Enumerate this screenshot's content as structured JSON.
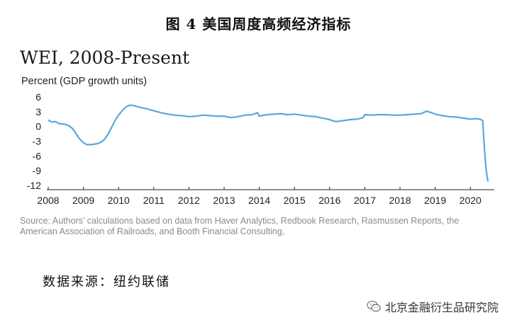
{
  "figure_title": "图 4 美国周度高频经济指标",
  "chart_data": {
    "type": "line",
    "title": "WEI, 2008-Present",
    "ylabel": "Percent (GDP growth units)",
    "xlabel": "",
    "ylim": [
      -12,
      6
    ],
    "xlim": [
      2008,
      2020.6
    ],
    "yticks": [
      6,
      3,
      0,
      -3,
      -6,
      -9,
      -12
    ],
    "xticks": [
      2008,
      2009,
      2010,
      2011,
      2012,
      2013,
      2014,
      2015,
      2016,
      2017,
      2018,
      2019,
      2020
    ],
    "grid": false,
    "line_color": "#5aa7db",
    "series": [
      {
        "x": [
          2008.0,
          2008.1,
          2008.2,
          2008.3,
          2008.4,
          2008.5,
          2008.6,
          2008.7,
          2008.8,
          2008.9,
          2009.0,
          2009.1,
          2009.2,
          2009.3,
          2009.4,
          2009.5,
          2009.6,
          2009.7,
          2009.8,
          2009.9,
          2010.0,
          2010.1,
          2010.2,
          2010.3,
          2010.4,
          2010.5,
          2010.6,
          2010.8,
          2011.0,
          2011.2,
          2011.4,
          2011.6,
          2011.8,
          2012.0,
          2012.2,
          2012.4,
          2012.6,
          2012.8,
          2013.0,
          2013.2,
          2013.4,
          2013.6,
          2013.8,
          2013.95,
          2014.0,
          2014.2,
          2014.4,
          2014.6,
          2014.8,
          2015.0,
          2015.2,
          2015.4,
          2015.6,
          2015.8,
          2016.0,
          2016.1,
          2016.2,
          2016.4,
          2016.6,
          2016.8,
          2016.95,
          2017.0,
          2017.2,
          2017.4,
          2017.6,
          2017.8,
          2018.0,
          2018.2,
          2018.4,
          2018.6,
          2018.75,
          2018.9,
          2019.0,
          2019.2,
          2019.4,
          2019.6,
          2019.8,
          2020.0,
          2020.15,
          2020.25,
          2020.3,
          2020.35,
          2020.4,
          2020.45,
          2020.5
        ],
        "y": [
          1.3,
          0.9,
          1.0,
          0.6,
          0.5,
          0.4,
          0.1,
          -0.5,
          -1.6,
          -2.6,
          -3.3,
          -3.7,
          -3.7,
          -3.6,
          -3.5,
          -3.2,
          -2.6,
          -1.6,
          -0.2,
          1.2,
          2.3,
          3.2,
          3.9,
          4.3,
          4.3,
          4.1,
          3.9,
          3.6,
          3.2,
          2.8,
          2.5,
          2.3,
          2.2,
          2.0,
          2.1,
          2.3,
          2.2,
          2.1,
          2.1,
          1.8,
          2.0,
          2.3,
          2.4,
          2.8,
          2.1,
          2.4,
          2.5,
          2.6,
          2.4,
          2.5,
          2.3,
          2.1,
          2.0,
          1.7,
          1.4,
          1.1,
          1.0,
          1.2,
          1.4,
          1.5,
          1.8,
          2.4,
          2.3,
          2.4,
          2.4,
          2.3,
          2.3,
          2.4,
          2.5,
          2.6,
          3.1,
          2.8,
          2.5,
          2.2,
          2.0,
          1.9,
          1.7,
          1.5,
          1.6,
          1.5,
          1.4,
          1.2,
          -4.5,
          -9.0,
          -11.2
        ]
      }
    ]
  },
  "source_note": "Source: Authors’ calculations based on data from Haver Analytics, Redbook Research, Rasmussen Reports, the American Association of Railroads, and Booth Financial Consulting,",
  "data_source": "数据来源：纽约联储",
  "watermark": {
    "icon": "wechat-icon",
    "text": "北京金融衍生品研究院"
  }
}
